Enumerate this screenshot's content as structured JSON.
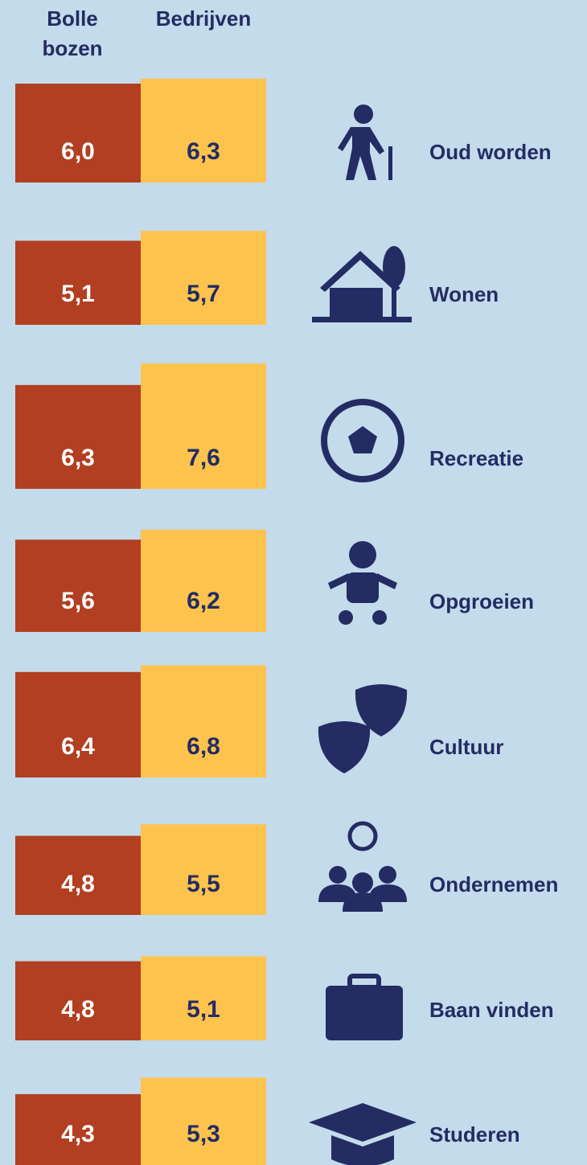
{
  "chart_data": {
    "type": "bar",
    "categories": [
      "Oud worden",
      "Wonen",
      "Recreatie",
      "Opgroeien",
      "Cultuur",
      "Ondernemen",
      "Baan vinden",
      "Studeren"
    ],
    "series": [
      {
        "name": "Bolle bozen",
        "color": "#b23f21",
        "values": [
          6.0,
          5.1,
          6.3,
          5.6,
          6.4,
          4.8,
          4.8,
          4.3
        ],
        "value_labels": [
          "6,0",
          "5,1",
          "6,3",
          "5,6",
          "6,4",
          "4,8",
          "4,8",
          "4,3"
        ]
      },
      {
        "name": "Bedrijven",
        "color": "#fec34d",
        "values": [
          6.3,
          5.7,
          7.6,
          6.2,
          6.8,
          5.5,
          5.1,
          5.3
        ],
        "value_labels": [
          "6,3",
          "5,7",
          "7,6",
          "6,2",
          "6,8",
          "5,5",
          "5,1",
          "5,3"
        ]
      }
    ]
  }
}
